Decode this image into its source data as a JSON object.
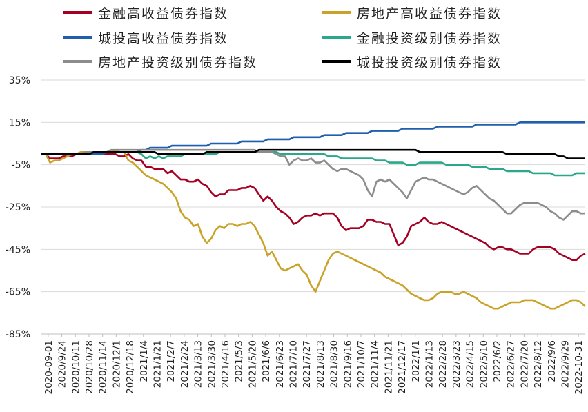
{
  "chart_data": {
    "type": "line",
    "title": "",
    "xlabel": "",
    "ylabel": "",
    "ylim": [
      -85,
      35
    ],
    "yticks": [
      "35%",
      "15%",
      "-5%",
      "-25%",
      "-45%",
      "-65%",
      "-85%"
    ],
    "ytick_values": [
      35,
      15,
      -5,
      -25,
      -45,
      -65,
      -85
    ],
    "grid": "horizontal",
    "legend_position": "top",
    "xticks": [
      "2020-09-01",
      "2020/9/24",
      "2020/10/11",
      "2020/10/28",
      "2020/11/14",
      "2020/12/1",
      "2020/12/18",
      "2021/1/4",
      "2021/1/21",
      "2021/2/7",
      "2021/2/24",
      "2021/3/13",
      "2021/3/30",
      "2021/4/16",
      "2021/5/3",
      "2021/5/20",
      "2021/6/6",
      "2021/6/23",
      "2021/7/10",
      "2021/7/27",
      "2021/8/13",
      "2021/8/30",
      "2021/9/16",
      "2021/10/7",
      "2021/11/4",
      "2021/11/21",
      "2021/12/17",
      "2022/1/1",
      "2022/1/13",
      "2022/2/28",
      "2022/3/23",
      "2022/4/15",
      "2022/5/10",
      "2022/6/2",
      "2022/6/27",
      "2022/7/20",
      "2022/8/12",
      "2022/9/6",
      "2022/9/29",
      "2022-10-31"
    ],
    "series": [
      {
        "name": "金融高收益债券指数",
        "color": "#A50021",
        "values": [
          0,
          0,
          -2,
          -2,
          -2,
          -1,
          -1,
          -1,
          0,
          0,
          0,
          0,
          0,
          0,
          0,
          0,
          0,
          0,
          -1,
          -1,
          0,
          -2,
          -3,
          -3,
          -6,
          -6,
          -7,
          -7,
          -7,
          -9,
          -8,
          -10,
          -12,
          -12,
          -13,
          -13,
          -12,
          -14,
          -15,
          -18,
          -20,
          -19,
          -19,
          -17,
          -17,
          -17,
          -16,
          -16,
          -15,
          -16,
          -19,
          -22,
          -20,
          -22,
          -25,
          -27,
          -28,
          -30,
          -33,
          -32,
          -30,
          -29,
          -29,
          -28,
          -29,
          -28,
          -28,
          -28,
          -30,
          -34,
          -36,
          -35,
          -35,
          -35,
          -34,
          -31,
          -31,
          -32,
          -32,
          -33,
          -33,
          -38,
          -43,
          -42,
          -39,
          -34,
          -33,
          -32,
          -30,
          -32,
          -33,
          -33,
          -32,
          -33,
          -34,
          -35,
          -36,
          -37,
          -38,
          -39,
          -40,
          -41,
          -42,
          -44,
          -45,
          -44,
          -44,
          -45,
          -45,
          -46,
          -47,
          -47,
          -47,
          -45,
          -44,
          -44,
          -44,
          -44,
          -45,
          -47,
          -48,
          -49,
          -50,
          -50,
          -48,
          -47
        ]
      },
      {
        "name": "房地产高收益债券指数",
        "color": "#C9A227",
        "values": [
          0,
          0,
          -4,
          -3,
          -3,
          -2,
          -1,
          0,
          0,
          1,
          1,
          1,
          1,
          0,
          1,
          1,
          1,
          2,
          1,
          1,
          -3,
          -4,
          -6,
          -8,
          -10,
          -11,
          -12,
          -13,
          -14,
          -16,
          -18,
          -21,
          -27,
          -30,
          -31,
          -34,
          -33,
          -39,
          -42,
          -40,
          -36,
          -34,
          -35,
          -33,
          -33,
          -34,
          -33,
          -33,
          -32,
          -34,
          -38,
          -42,
          -48,
          -46,
          -50,
          -54,
          -55,
          -54,
          -53,
          -52,
          -55,
          -57,
          -62,
          -65,
          -60,
          -55,
          -50,
          -47,
          -46,
          -47,
          -48,
          -49,
          -50,
          -51,
          -52,
          -53,
          -54,
          -55,
          -56,
          -58,
          -59,
          -60,
          -61,
          -62,
          -64,
          -66,
          -67,
          -68,
          -69,
          -69,
          -68,
          -66,
          -65,
          -65,
          -65,
          -66,
          -66,
          -65,
          -66,
          -67,
          -68,
          -70,
          -71,
          -72,
          -73,
          -73,
          -72,
          -71,
          -70,
          -70,
          -70,
          -69,
          -69,
          -69,
          -70,
          -71,
          -72,
          -73,
          -73,
          -72,
          -71,
          -70,
          -69,
          -69,
          -70,
          -72
        ]
      },
      {
        "name": "城投高收益债券指数",
        "color": "#1F5FAE",
        "values": [
          0,
          0,
          0,
          0,
          0,
          0,
          0,
          0,
          0,
          0,
          0,
          0,
          0,
          0,
          0,
          1,
          1,
          1,
          1,
          1,
          1,
          1,
          1,
          2,
          2,
          3,
          3,
          3,
          3,
          3,
          4,
          4,
          4,
          4,
          4,
          4,
          4,
          4,
          4,
          5,
          5,
          5,
          5,
          5,
          5,
          5,
          6,
          6,
          6,
          6,
          6,
          6,
          7,
          7,
          7,
          7,
          7,
          7,
          8,
          8,
          8,
          8,
          8,
          8,
          8,
          9,
          9,
          9,
          9,
          9,
          10,
          10,
          10,
          10,
          10,
          10,
          11,
          11,
          11,
          11,
          11,
          11,
          11,
          12,
          12,
          12,
          12,
          12,
          12,
          12,
          12,
          13,
          13,
          13,
          13,
          13,
          13,
          13,
          13,
          13,
          14,
          14,
          14,
          14,
          14,
          14,
          14,
          14,
          14,
          14,
          15,
          15,
          15,
          15,
          15,
          15,
          15,
          15,
          15,
          15,
          15,
          15,
          15,
          15,
          15,
          15
        ]
      },
      {
        "name": "金融投资级别债券指数",
        "color": "#2AA889",
        "values": [
          0,
          0,
          0,
          0,
          0,
          0,
          0,
          0,
          0,
          0,
          0,
          1,
          1,
          1,
          1,
          1,
          1,
          1,
          1,
          1,
          1,
          1,
          1,
          0,
          -2,
          -1,
          -2,
          -1,
          -2,
          -1,
          -1,
          -1,
          -1,
          0,
          0,
          0,
          0,
          0,
          0,
          0,
          0,
          1,
          1,
          1,
          1,
          1,
          1,
          1,
          1,
          1,
          1,
          1,
          1,
          1,
          1,
          0,
          0,
          0,
          0,
          0,
          0,
          0,
          0,
          0,
          0,
          0,
          -1,
          -1,
          -1,
          -2,
          -2,
          -2,
          -2,
          -2,
          -2,
          -2,
          -2,
          -3,
          -3,
          -3,
          -4,
          -4,
          -4,
          -4,
          -5,
          -5,
          -5,
          -4,
          -4,
          -4,
          -4,
          -4,
          -4,
          -5,
          -5,
          -5,
          -5,
          -5,
          -5,
          -6,
          -6,
          -6,
          -6,
          -7,
          -7,
          -7,
          -7,
          -8,
          -8,
          -8,
          -8,
          -8,
          -8,
          -9,
          -9,
          -9,
          -9,
          -9,
          -10,
          -10,
          -10,
          -10,
          -10,
          -9,
          -9,
          -9
        ]
      },
      {
        "name": "房地产投资级别债券指数",
        "color": "#8C8C8C",
        "values": [
          0,
          0,
          0,
          0,
          0,
          0,
          0,
          0,
          0,
          0,
          1,
          1,
          1,
          1,
          1,
          1,
          2,
          2,
          2,
          2,
          2,
          2,
          2,
          2,
          2,
          2,
          2,
          2,
          2,
          2,
          2,
          2,
          2,
          2,
          2,
          2,
          2,
          2,
          2,
          2,
          2,
          2,
          2,
          2,
          2,
          2,
          2,
          2,
          2,
          2,
          1,
          1,
          1,
          1,
          0,
          -1,
          -1,
          -5,
          -3,
          -2,
          -3,
          -3,
          -2,
          -4,
          -4,
          -3,
          -5,
          -7,
          -8,
          -7,
          -7,
          -8,
          -9,
          -10,
          -12,
          -17,
          -20,
          -13,
          -12,
          -13,
          -12,
          -14,
          -16,
          -18,
          -21,
          -17,
          -13,
          -12,
          -11,
          -12,
          -12,
          -13,
          -14,
          -15,
          -16,
          -17,
          -18,
          -19,
          -18,
          -16,
          -15,
          -17,
          -19,
          -21,
          -22,
          -24,
          -26,
          -28,
          -28,
          -26,
          -24,
          -23,
          -23,
          -23,
          -23,
          -24,
          -25,
          -27,
          -28,
          -30,
          -31,
          -29,
          -27,
          -27,
          -28,
          -28
        ]
      },
      {
        "name": "城投投资级别债券指数",
        "color": "#000000",
        "values": [
          0,
          0,
          0,
          0,
          0,
          0,
          0,
          0,
          0,
          0,
          0,
          0,
          1,
          1,
          1,
          1,
          1,
          1,
          1,
          1,
          1,
          1,
          1,
          1,
          1,
          1,
          1,
          0,
          0,
          0,
          0,
          0,
          0,
          0,
          0,
          0,
          0,
          0,
          1,
          1,
          1,
          1,
          1,
          1,
          1,
          1,
          1,
          1,
          1,
          1,
          2,
          2,
          2,
          2,
          2,
          2,
          2,
          2,
          2,
          2,
          2,
          2,
          2,
          2,
          2,
          2,
          2,
          2,
          2,
          2,
          2,
          2,
          2,
          2,
          2,
          2,
          2,
          2,
          2,
          2,
          2,
          2,
          2,
          2,
          2,
          2,
          2,
          1,
          1,
          1,
          1,
          1,
          1,
          1,
          1,
          1,
          1,
          1,
          1,
          1,
          1,
          1,
          1,
          1,
          1,
          1,
          1,
          0,
          0,
          0,
          0,
          0,
          0,
          0,
          0,
          0,
          0,
          0,
          0,
          -1,
          -1,
          -2,
          -2,
          -2,
          -2,
          -2
        ]
      }
    ]
  }
}
